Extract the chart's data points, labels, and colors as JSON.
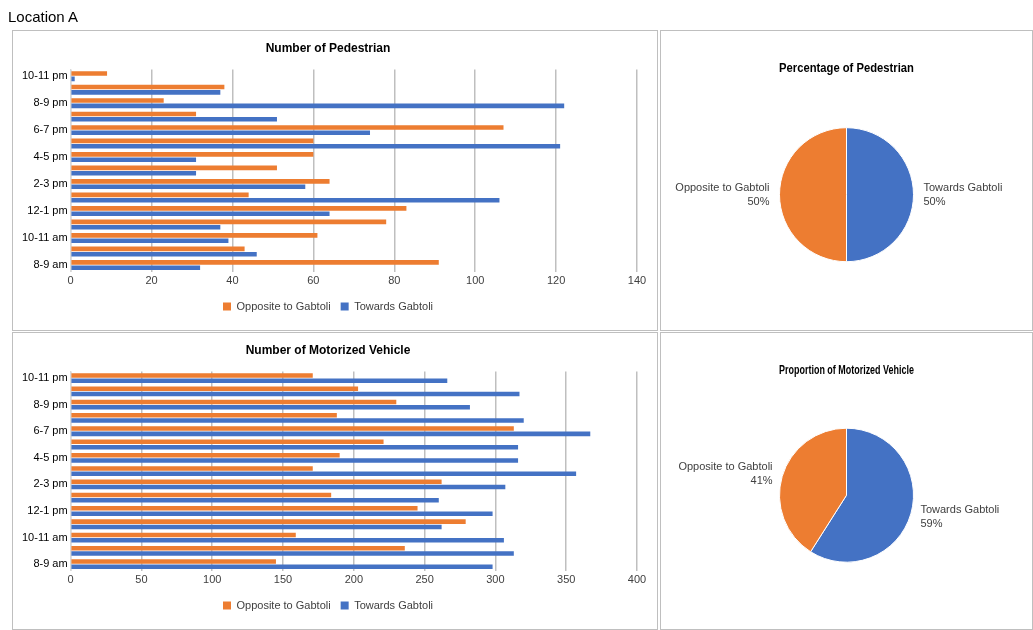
{
  "chart_data": [
    {
      "type": "other",
      "title": "Location A"
    },
    {
      "type": "bar",
      "orientation": "horizontal",
      "title": "Number of Pedestrian",
      "categories": [
        "10-11 pm",
        null,
        "8-9 pm",
        null,
        "6-7 pm",
        null,
        "4-5 pm",
        null,
        "2-3 pm",
        null,
        "12-1 pm",
        null,
        "10-11 am",
        null,
        "8-9 am"
      ],
      "series": [
        {
          "name": "Opposite to Gabtoli",
          "color": "#ed7d31",
          "values": [
            9,
            38,
            23,
            31,
            107,
            60,
            60,
            51,
            64,
            44,
            83,
            78,
            61,
            43,
            91
          ]
        },
        {
          "name": "Towards Gabtoli",
          "color": "#4472c4",
          "values": [
            1,
            37,
            122,
            51,
            74,
            121,
            31,
            31,
            58,
            106,
            64,
            37,
            39,
            46,
            32
          ]
        }
      ],
      "xlim": [
        0,
        140
      ],
      "xticks": [
        0,
        20,
        40,
        60,
        80,
        100,
        120,
        140
      ],
      "grid": "x",
      "legend": "bottom"
    },
    {
      "type": "pie",
      "title": "Percentage of Pedestrian",
      "categories": [
        "Towards Gabtoli",
        "Opposite to Gabtoli"
      ],
      "values": [
        50,
        50
      ],
      "colors": [
        "#4472c4",
        "#ed7d31"
      ],
      "value_labels": [
        "50%",
        "50%"
      ]
    },
    {
      "type": "bar",
      "orientation": "horizontal",
      "title": "Number of Motorized Vehicle",
      "categories": [
        "10-11 pm",
        null,
        "8-9 pm",
        null,
        "6-7 pm",
        null,
        "4-5 pm",
        null,
        "2-3 pm",
        null,
        "12-1 pm",
        null,
        "10-11 am",
        null,
        "8-9 am"
      ],
      "series": [
        {
          "name": "Opposite to Gabtoli",
          "color": "#ed7d31",
          "values": [
            171,
            203,
            230,
            188,
            313,
            221,
            190,
            171,
            262,
            184,
            245,
            279,
            159,
            236,
            145
          ]
        },
        {
          "name": "Towards Gabtoli",
          "color": "#4472c4",
          "values": [
            266,
            317,
            282,
            320,
            367,
            316,
            316,
            357,
            307,
            260,
            298,
            262,
            306,
            313,
            298
          ]
        }
      ],
      "xlim": [
        0,
        400
      ],
      "xticks": [
        0,
        50,
        100,
        150,
        200,
        250,
        300,
        350,
        400
      ],
      "grid": "x",
      "legend": "bottom"
    },
    {
      "type": "pie",
      "title": "Proportion of Motorized Vehicle",
      "categories": [
        "Towards Gabtoli",
        "Opposite to Gabtoli"
      ],
      "values": [
        59,
        41
      ],
      "colors": [
        "#4472c4",
        "#ed7d31"
      ],
      "value_labels": [
        "59%",
        "41%"
      ]
    }
  ]
}
